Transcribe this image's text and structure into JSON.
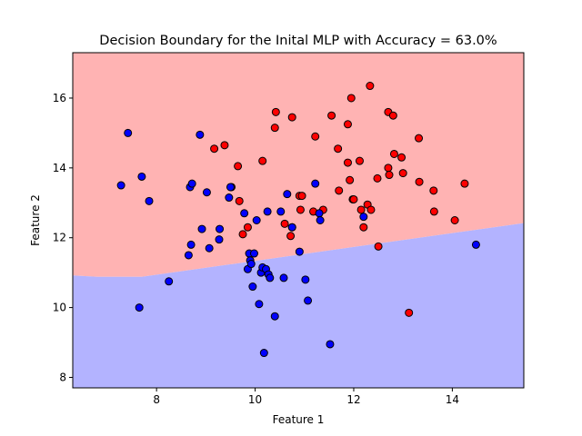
{
  "chart_data": {
    "type": "scatter",
    "title": "Decision Boundary for the Inital MLP with Accuracy = 63.0%",
    "xlabel": "Feature 1",
    "ylabel": "Feature 2",
    "xlim": [
      6.3,
      15.45
    ],
    "ylim": [
      7.7,
      17.3
    ],
    "xticks": [
      8,
      10,
      12,
      14
    ],
    "yticks": [
      8,
      10,
      12,
      14,
      16
    ],
    "grid": false,
    "legend": "none",
    "regions": [
      {
        "name": "class-red",
        "color": "#ffb3b3"
      },
      {
        "name": "class-blue",
        "color": "#b3b3ff"
      }
    ],
    "boundary": {
      "x": [
        6.3,
        6.8,
        7.7,
        15.45
      ],
      "y": [
        10.92,
        10.88,
        10.88,
        12.42
      ]
    },
    "series": [
      {
        "color": "#ff0000",
        "points": [
          [
            9.17,
            14.55
          ],
          [
            9.38,
            14.65
          ],
          [
            9.52,
            13.45
          ],
          [
            9.65,
            14.05
          ],
          [
            9.68,
            13.05
          ],
          [
            9.75,
            12.1
          ],
          [
            9.85,
            12.3
          ],
          [
            10.15,
            14.2
          ],
          [
            10.4,
            15.15
          ],
          [
            10.42,
            15.6
          ],
          [
            10.6,
            12.4
          ],
          [
            10.72,
            12.05
          ],
          [
            10.75,
            15.45
          ],
          [
            10.75,
            12.3
          ],
          [
            10.9,
            13.2
          ],
          [
            10.92,
            12.8
          ],
          [
            10.95,
            13.2
          ],
          [
            11.18,
            12.75
          ],
          [
            11.22,
            14.9
          ],
          [
            11.38,
            12.8
          ],
          [
            11.55,
            15.5
          ],
          [
            11.68,
            14.55
          ],
          [
            11.7,
            13.35
          ],
          [
            11.88,
            15.25
          ],
          [
            11.88,
            14.15
          ],
          [
            11.92,
            13.65
          ],
          [
            11.95,
            16.0
          ],
          [
            11.98,
            13.1
          ],
          [
            12.0,
            13.1
          ],
          [
            12.12,
            14.2
          ],
          [
            12.15,
            12.8
          ],
          [
            12.2,
            12.3
          ],
          [
            12.28,
            12.95
          ],
          [
            12.33,
            16.35
          ],
          [
            12.35,
            12.8
          ],
          [
            12.48,
            13.7
          ],
          [
            12.5,
            11.75
          ],
          [
            12.7,
            15.6
          ],
          [
            12.7,
            14.0
          ],
          [
            12.72,
            13.8
          ],
          [
            12.8,
            15.5
          ],
          [
            12.82,
            14.4
          ],
          [
            12.97,
            14.3
          ],
          [
            13.0,
            13.85
          ],
          [
            13.12,
            9.85
          ],
          [
            13.32,
            14.85
          ],
          [
            13.33,
            13.6
          ],
          [
            13.62,
            13.35
          ],
          [
            13.63,
            12.75
          ],
          [
            14.05,
            12.5
          ],
          [
            14.25,
            13.55
          ]
        ]
      },
      {
        "color": "#0000ff",
        "points": [
          [
            7.28,
            13.5
          ],
          [
            7.42,
            15.0
          ],
          [
            7.65,
            10.0
          ],
          [
            7.7,
            13.75
          ],
          [
            7.85,
            13.05
          ],
          [
            8.25,
            10.75
          ],
          [
            8.65,
            11.5
          ],
          [
            8.68,
            13.45
          ],
          [
            8.7,
            11.8
          ],
          [
            8.72,
            13.55
          ],
          [
            8.88,
            14.95
          ],
          [
            8.92,
            12.25
          ],
          [
            9.02,
            13.3
          ],
          [
            9.07,
            11.7
          ],
          [
            9.27,
            11.95
          ],
          [
            9.28,
            12.25
          ],
          [
            9.47,
            13.15
          ],
          [
            9.5,
            13.45
          ],
          [
            9.78,
            12.7
          ],
          [
            9.85,
            11.1
          ],
          [
            9.88,
            11.55
          ],
          [
            9.9,
            11.35
          ],
          [
            9.92,
            11.25
          ],
          [
            9.95,
            10.6
          ],
          [
            9.98,
            11.55
          ],
          [
            10.03,
            12.5
          ],
          [
            10.08,
            10.1
          ],
          [
            10.12,
            11.0
          ],
          [
            10.15,
            11.15
          ],
          [
            10.18,
            8.7
          ],
          [
            10.22,
            11.1
          ],
          [
            10.25,
            12.75
          ],
          [
            10.27,
            10.95
          ],
          [
            10.3,
            10.85
          ],
          [
            10.4,
            9.75
          ],
          [
            10.52,
            12.75
          ],
          [
            10.58,
            10.85
          ],
          [
            10.65,
            13.25
          ],
          [
            10.75,
            12.3
          ],
          [
            10.9,
            11.6
          ],
          [
            11.02,
            10.8
          ],
          [
            11.07,
            10.2
          ],
          [
            11.22,
            13.55
          ],
          [
            11.3,
            12.7
          ],
          [
            11.32,
            12.5
          ],
          [
            11.52,
            8.95
          ],
          [
            12.2,
            12.6
          ],
          [
            14.48,
            11.8
          ]
        ]
      }
    ]
  }
}
